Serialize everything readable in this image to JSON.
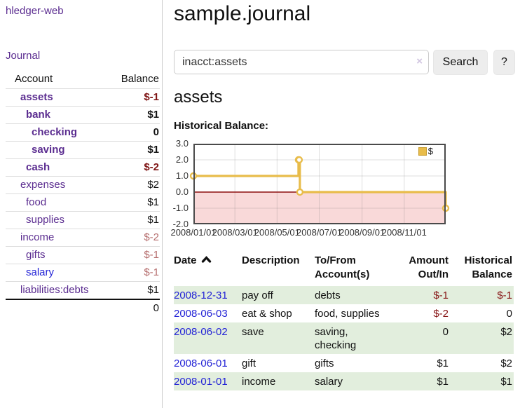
{
  "app": {
    "title": "hledger-web"
  },
  "sidebar": {
    "journal_link_label": "Journal",
    "accounts": {
      "account_header": "Account",
      "balance_header": "Balance",
      "rows": [
        {
          "account": "assets",
          "balance": "$-1",
          "depth": 1,
          "bold": true,
          "neg": "neg-strong",
          "blue": false
        },
        {
          "account": "bank",
          "balance": "$1",
          "depth": 2,
          "bold": true,
          "neg": "",
          "blue": false
        },
        {
          "account": "checking",
          "balance": "0",
          "depth": 3,
          "bold": true,
          "neg": "",
          "blue": false
        },
        {
          "account": "saving",
          "balance": "$1",
          "depth": 3,
          "bold": true,
          "neg": "",
          "blue": false
        },
        {
          "account": "cash",
          "balance": "$-2",
          "depth": 2,
          "bold": true,
          "neg": "neg-strong",
          "blue": false
        },
        {
          "account": "expenses",
          "balance": "$2",
          "depth": 1,
          "bold": false,
          "neg": "",
          "blue": false
        },
        {
          "account": "food",
          "balance": "$1",
          "depth": 2,
          "bold": false,
          "neg": "",
          "blue": false
        },
        {
          "account": "supplies",
          "balance": "$1",
          "depth": 2,
          "bold": false,
          "neg": "",
          "blue": false
        },
        {
          "account": "income",
          "balance": "$-2",
          "depth": 1,
          "bold": false,
          "neg": "neg-soft",
          "blue": false
        },
        {
          "account": "gifts",
          "balance": "$-1",
          "depth": 2,
          "bold": false,
          "neg": "neg-soft",
          "blue": false
        },
        {
          "account": "salary",
          "balance": "$-1",
          "depth": 2,
          "bold": false,
          "neg": "neg-soft",
          "blue": true
        },
        {
          "account": "liabilities:debts",
          "balance": "$1",
          "depth": 1,
          "bold": false,
          "neg": "",
          "blue": false
        }
      ],
      "total": "0"
    }
  },
  "main": {
    "title": "sample.journal",
    "search": {
      "value": "inacct:assets",
      "clear_icon": "×",
      "search_button_label": "Search",
      "help_button_label": "?"
    },
    "account_heading": "assets",
    "chart_title": "Historical Balance:"
  },
  "chart_data": {
    "type": "line",
    "title": "Historical Balance:",
    "step": true,
    "series": [
      {
        "name": "$",
        "color": "#e8bc4a",
        "points": [
          [
            "2008-01-01",
            1
          ],
          [
            "2008-06-01",
            2
          ],
          [
            "2008-06-02",
            2
          ],
          [
            "2008-06-03",
            0
          ],
          [
            "2008-12-31",
            -1
          ]
        ]
      }
    ],
    "xlim": [
      "2008-01-01",
      "2008-12-31"
    ],
    "ylim": [
      -2,
      3
    ],
    "x_ticks": [
      "2008/01/01",
      "2008/03/01",
      "2008/05/01",
      "2008/07/01",
      "2008/09/01",
      "2008/11/01"
    ],
    "y_ticks": [
      3,
      2,
      1,
      0,
      -1,
      -2
    ],
    "y_grid_ticks": [
      2,
      1,
      0,
      -1
    ],
    "legend": {
      "label": "$",
      "position": "top-right"
    },
    "colors": {
      "line": "#e8bc4a",
      "marker_fill": "#ffffff",
      "negative_region": "#f9d9d9",
      "zero_line": "#8c0d0d",
      "grid": "rgba(110,110,110,0.22)",
      "border": "#4a4a4a",
      "legend_swatch": "#e8bc4a",
      "legend_swatch_border": "#c79c2d"
    }
  },
  "register": {
    "columns": [
      "Date",
      "Description",
      "To/From Account(s)",
      "Amount Out/In",
      "Historical Balance"
    ],
    "sort": "ascending",
    "rows": [
      {
        "date": "2008-12-31",
        "description": "pay off",
        "accounts": "debts",
        "amount": "$-1",
        "amount_negative": true,
        "balance": "$-1",
        "balance_negative": true
      },
      {
        "date": "2008-06-03",
        "description": "eat & shop",
        "accounts": "food, supplies",
        "amount": "$-2",
        "amount_negative": true,
        "balance": "0",
        "balance_negative": false
      },
      {
        "date": "2008-06-02",
        "description": "save",
        "accounts": "saving, checking",
        "amount": "0",
        "amount_negative": false,
        "balance": "$2",
        "balance_negative": false
      },
      {
        "date": "2008-06-01",
        "description": "gift",
        "accounts": "gifts",
        "amount": "$1",
        "amount_negative": false,
        "balance": "$2",
        "balance_negative": false
      },
      {
        "date": "2008-01-01",
        "description": "income",
        "accounts": "salary",
        "amount": "$1",
        "amount_negative": false,
        "balance": "$1",
        "balance_negative": false
      }
    ]
  }
}
